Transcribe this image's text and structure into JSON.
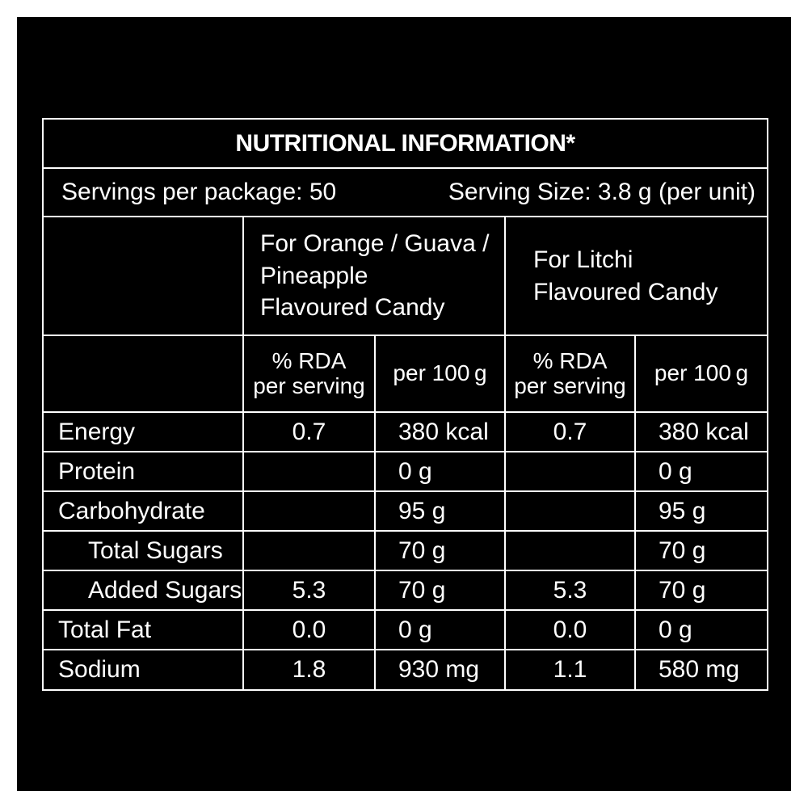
{
  "title": "NUTRITIONAL INFORMATION*",
  "servings_per_package": "Servings per package: 50",
  "serving_size": "Serving Size: 3.8 g (per unit)",
  "flavour_groups": [
    {
      "lines": [
        "For Orange / Guava /",
        "Pineapple",
        "Flavoured Candy"
      ]
    },
    {
      "lines": [
        "For Litchi",
        "Flavoured Candy"
      ]
    }
  ],
  "subheaders": {
    "rda_line1": "% RDA",
    "rda_line2": "per serving",
    "per100": "per 100 g"
  },
  "rows": [
    {
      "nutrient": "Energy",
      "indent": false,
      "values": [
        "0.7",
        "380 kcal",
        "0.7",
        "380 kcal"
      ]
    },
    {
      "nutrient": "Protein",
      "indent": false,
      "values": [
        "",
        "0 g",
        "",
        "0 g"
      ]
    },
    {
      "nutrient": "Carbohydrate",
      "indent": false,
      "values": [
        "",
        "95 g",
        "",
        "95 g"
      ]
    },
    {
      "nutrient": "Total Sugars",
      "indent": true,
      "values": [
        "",
        "70 g",
        "",
        "70 g"
      ]
    },
    {
      "nutrient": "Added Sugars",
      "indent": true,
      "values": [
        "5.3",
        "70 g",
        "5.3",
        "70 g"
      ]
    },
    {
      "nutrient": "Total Fat",
      "indent": false,
      "values": [
        "0.0",
        "0 g",
        "0.0",
        "0 g"
      ]
    },
    {
      "nutrient": "Sodium",
      "indent": false,
      "values": [
        "1.8",
        "930 mg",
        "1.1",
        "580 mg"
      ]
    }
  ],
  "colors": {
    "background": "#000000",
    "text": "#ffffff",
    "outer_frame": "#ffffff"
  }
}
